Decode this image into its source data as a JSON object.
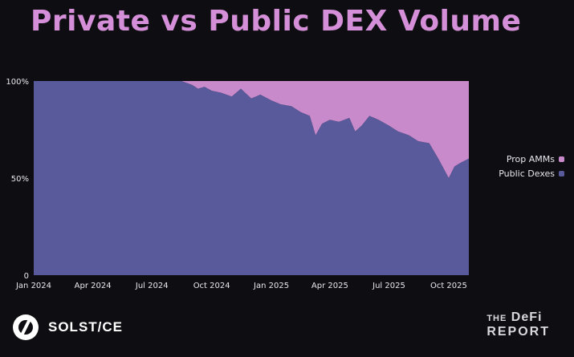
{
  "chart_data": {
    "type": "area",
    "stacked": true,
    "normalized": true,
    "title": "Private vs Public DEX Volume",
    "y_ticks": [
      "0",
      "50%",
      "100%"
    ],
    "x_ticks": [
      "Jan 2024",
      "Apr 2024",
      "Jul 2024",
      "Oct 2024",
      "Jan 2025",
      "Apr 2025",
      "Jul 2025",
      "Oct 2025"
    ],
    "x_range": [
      "2024-01-01",
      "2025-11-01"
    ],
    "ylim": [
      0,
      100
    ],
    "legend_position": "right",
    "series": [
      {
        "name": "Public Dexes",
        "color": "#585a9c",
        "x": [
          "2024-01-01",
          "2024-03-01",
          "2024-05-01",
          "2024-08-15",
          "2024-09-01",
          "2024-09-10",
          "2024-09-20",
          "2024-10-01",
          "2024-10-15",
          "2024-11-01",
          "2024-11-15",
          "2024-12-01",
          "2024-12-15",
          "2025-01-01",
          "2025-01-15",
          "2025-02-01",
          "2025-02-15",
          "2025-03-01",
          "2025-03-10",
          "2025-03-20",
          "2025-04-01",
          "2025-04-15",
          "2025-05-01",
          "2025-05-10",
          "2025-05-20",
          "2025-06-01",
          "2025-06-15",
          "2025-07-01",
          "2025-07-15",
          "2025-08-01",
          "2025-08-15",
          "2025-09-01",
          "2025-09-15",
          "2025-10-01",
          "2025-10-10",
          "2025-10-20",
          "2025-11-01"
        ],
        "values": [
          100,
          100,
          100,
          100,
          98,
          96,
          97,
          95,
          94,
          92,
          96,
          91,
          93,
          90,
          88,
          87,
          84,
          82,
          72,
          78,
          80,
          79,
          81,
          74,
          77,
          82,
          80,
          77,
          74,
          72,
          69,
          68,
          60,
          50,
          56,
          58,
          60
        ]
      },
      {
        "name": "Prop AMMs",
        "color": "#c98acb",
        "x": [
          "2024-01-01",
          "2024-03-01",
          "2024-05-01",
          "2024-08-15",
          "2024-09-01",
          "2024-09-10",
          "2024-09-20",
          "2024-10-01",
          "2024-10-15",
          "2024-11-01",
          "2024-11-15",
          "2024-12-01",
          "2024-12-15",
          "2025-01-01",
          "2025-01-15",
          "2025-02-01",
          "2025-02-15",
          "2025-03-01",
          "2025-03-10",
          "2025-03-20",
          "2025-04-01",
          "2025-04-15",
          "2025-05-01",
          "2025-05-10",
          "2025-05-20",
          "2025-06-01",
          "2025-06-15",
          "2025-07-01",
          "2025-07-15",
          "2025-08-01",
          "2025-08-15",
          "2025-09-01",
          "2025-09-15",
          "2025-10-01",
          "2025-10-10",
          "2025-10-20",
          "2025-11-01"
        ],
        "values": [
          0,
          0,
          0,
          0,
          2,
          4,
          3,
          5,
          6,
          8,
          4,
          9,
          7,
          10,
          12,
          13,
          16,
          18,
          28,
          22,
          20,
          21,
          19,
          26,
          23,
          18,
          20,
          23,
          26,
          28,
          31,
          32,
          40,
          50,
          44,
          42,
          40
        ]
      }
    ],
    "grid": false
  },
  "branding": {
    "left_logo_text": "SOLST/CE",
    "right_logo_line1_prefix": "THE",
    "right_logo_line1": "DeFi",
    "right_logo_line2": "REPORT"
  }
}
